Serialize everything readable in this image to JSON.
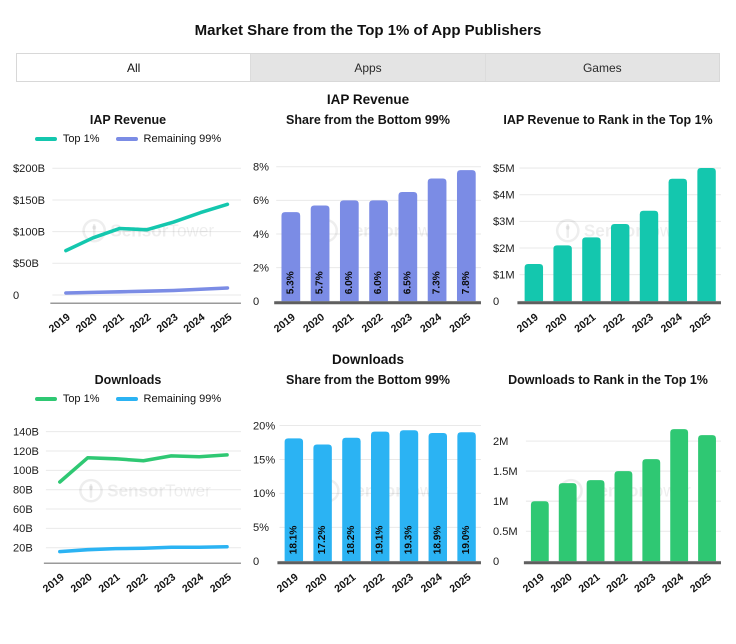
{
  "page": {
    "title": "Market Share from the Top 1% of App Publishers"
  },
  "tabs": [
    {
      "label": "All",
      "active": true
    },
    {
      "label": "Apps",
      "active": false
    },
    {
      "label": "Games",
      "active": false
    }
  ],
  "sections": [
    {
      "header": "IAP Revenue"
    },
    {
      "header": "Downloads"
    }
  ],
  "watermark": {
    "bold": "Sensor",
    "light": "Tower"
  },
  "colors": {
    "teal": "#14c7ae",
    "periwinkle": "#7b8ce5",
    "green": "#2fc873",
    "blue": "#2bb3f3"
  },
  "chart_data": [
    {
      "id": "iap-revenue-top1-vs-99",
      "type": "line",
      "title": "IAP Revenue",
      "legend": true,
      "categories": [
        "2019",
        "2020",
        "2021",
        "2022",
        "2023",
        "2024",
        "2025"
      ],
      "series": [
        {
          "name": "Top 1%",
          "color": "#14c7ae",
          "values": [
            70,
            90,
            105,
            103,
            115,
            130,
            143
          ]
        },
        {
          "name": "Remaining 99%",
          "color": "#7b8ce5",
          "values": [
            3,
            4,
            5,
            6,
            7,
            9,
            11
          ]
        }
      ],
      "yticks": [
        {
          "value": 200,
          "label": "$200B"
        },
        {
          "value": 150,
          "label": "$150B"
        },
        {
          "value": 100,
          "label": "$100B"
        },
        {
          "value": 50,
          "label": "$50B"
        },
        {
          "value": 0,
          "label": "0"
        }
      ],
      "ylim": [
        -10,
        213
      ]
    },
    {
      "id": "iap-share-from-bottom-99",
      "type": "bar",
      "title": "Share from the Bottom 99%",
      "color": "#7b8ce5",
      "categories": [
        "2019",
        "2020",
        "2021",
        "2022",
        "2023",
        "2024",
        "2025"
      ],
      "values": [
        5.3,
        5.7,
        6.0,
        6.0,
        6.5,
        7.3,
        7.8
      ],
      "bar_labels": [
        "5.3%",
        "5.7%",
        "6.0%",
        "6.0%",
        "6.5%",
        "7.3%",
        "7.8%"
      ],
      "yticks": [
        {
          "value": 8,
          "label": "8%"
        },
        {
          "value": 6,
          "label": "6%"
        },
        {
          "value": 4,
          "label": "4%"
        },
        {
          "value": 2,
          "label": "2%"
        },
        {
          "value": 0,
          "label": "0"
        }
      ],
      "ylim": [
        0,
        8.4
      ]
    },
    {
      "id": "iap-revenue-to-rank-top1",
      "type": "bar",
      "title": "IAP Revenue to Rank in the Top 1%",
      "color": "#14c7ae",
      "categories": [
        "2019",
        "2020",
        "2021",
        "2022",
        "2023",
        "2024",
        "2025"
      ],
      "values": [
        1.4,
        2.1,
        2.4,
        2.9,
        3.4,
        4.6,
        5.0
      ],
      "yticks": [
        {
          "value": 5,
          "label": "$5M"
        },
        {
          "value": 4,
          "label": "$4M"
        },
        {
          "value": 3,
          "label": "$3M"
        },
        {
          "value": 2,
          "label": "$2M"
        },
        {
          "value": 1,
          "label": "$1M"
        },
        {
          "value": 0,
          "label": "0"
        }
      ],
      "ylim": [
        0,
        5.3
      ]
    },
    {
      "id": "downloads-top1-vs-99",
      "type": "line",
      "title": "Downloads",
      "legend": true,
      "categories": [
        "2019",
        "2020",
        "2021",
        "2022",
        "2023",
        "2024",
        "2025"
      ],
      "series": [
        {
          "name": "Top 1%",
          "color": "#2fc873",
          "values": [
            88,
            113,
            112,
            110,
            115,
            114,
            116
          ]
        },
        {
          "name": "Remaining 99%",
          "color": "#2bb3f3",
          "values": [
            16,
            18,
            19,
            19.5,
            20.5,
            20.5,
            21
          ]
        }
      ],
      "yticks": [
        {
          "value": 140,
          "label": "140B"
        },
        {
          "value": 120,
          "label": "120B"
        },
        {
          "value": 100,
          "label": "100B"
        },
        {
          "value": 80,
          "label": "80B"
        },
        {
          "value": 60,
          "label": "60B"
        },
        {
          "value": 40,
          "label": "40B"
        },
        {
          "value": 20,
          "label": "20B"
        }
      ],
      "ylim": [
        6,
        152
      ]
    },
    {
      "id": "downloads-share-from-bottom-99",
      "type": "bar",
      "title": "Share from the Bottom 99%",
      "color": "#2bb3f3",
      "categories": [
        "2019",
        "2020",
        "2021",
        "2022",
        "2023",
        "2024",
        "2025"
      ],
      "values": [
        18.1,
        17.2,
        18.2,
        19.1,
        19.3,
        18.9,
        19.0
      ],
      "bar_labels": [
        "18.1%",
        "17.2%",
        "18.2%",
        "19.1%",
        "19.3%",
        "18.9%",
        "19.0%"
      ],
      "yticks": [
        {
          "value": 20,
          "label": "20%"
        },
        {
          "value": 15,
          "label": "15%"
        },
        {
          "value": 10,
          "label": "10%"
        },
        {
          "value": 5,
          "label": "5%"
        },
        {
          "value": 0,
          "label": "0"
        }
      ],
      "ylim": [
        0,
        20.8
      ]
    },
    {
      "id": "downloads-to-rank-top1",
      "type": "bar",
      "title": "Downloads to Rank in the Top 1%",
      "color": "#2fc873",
      "categories": [
        "2019",
        "2020",
        "2021",
        "2022",
        "2023",
        "2024",
        "2025"
      ],
      "values": [
        1.0,
        1.3,
        1.35,
        1.5,
        1.7,
        2.2,
        2.1
      ],
      "yticks": [
        {
          "value": 2,
          "label": "2M"
        },
        {
          "value": 1.5,
          "label": "1.5M"
        },
        {
          "value": 1,
          "label": "1M"
        },
        {
          "value": 0.5,
          "label": "0.5M"
        },
        {
          "value": 0,
          "label": "0"
        }
      ],
      "ylim": [
        0,
        2.35
      ]
    }
  ]
}
